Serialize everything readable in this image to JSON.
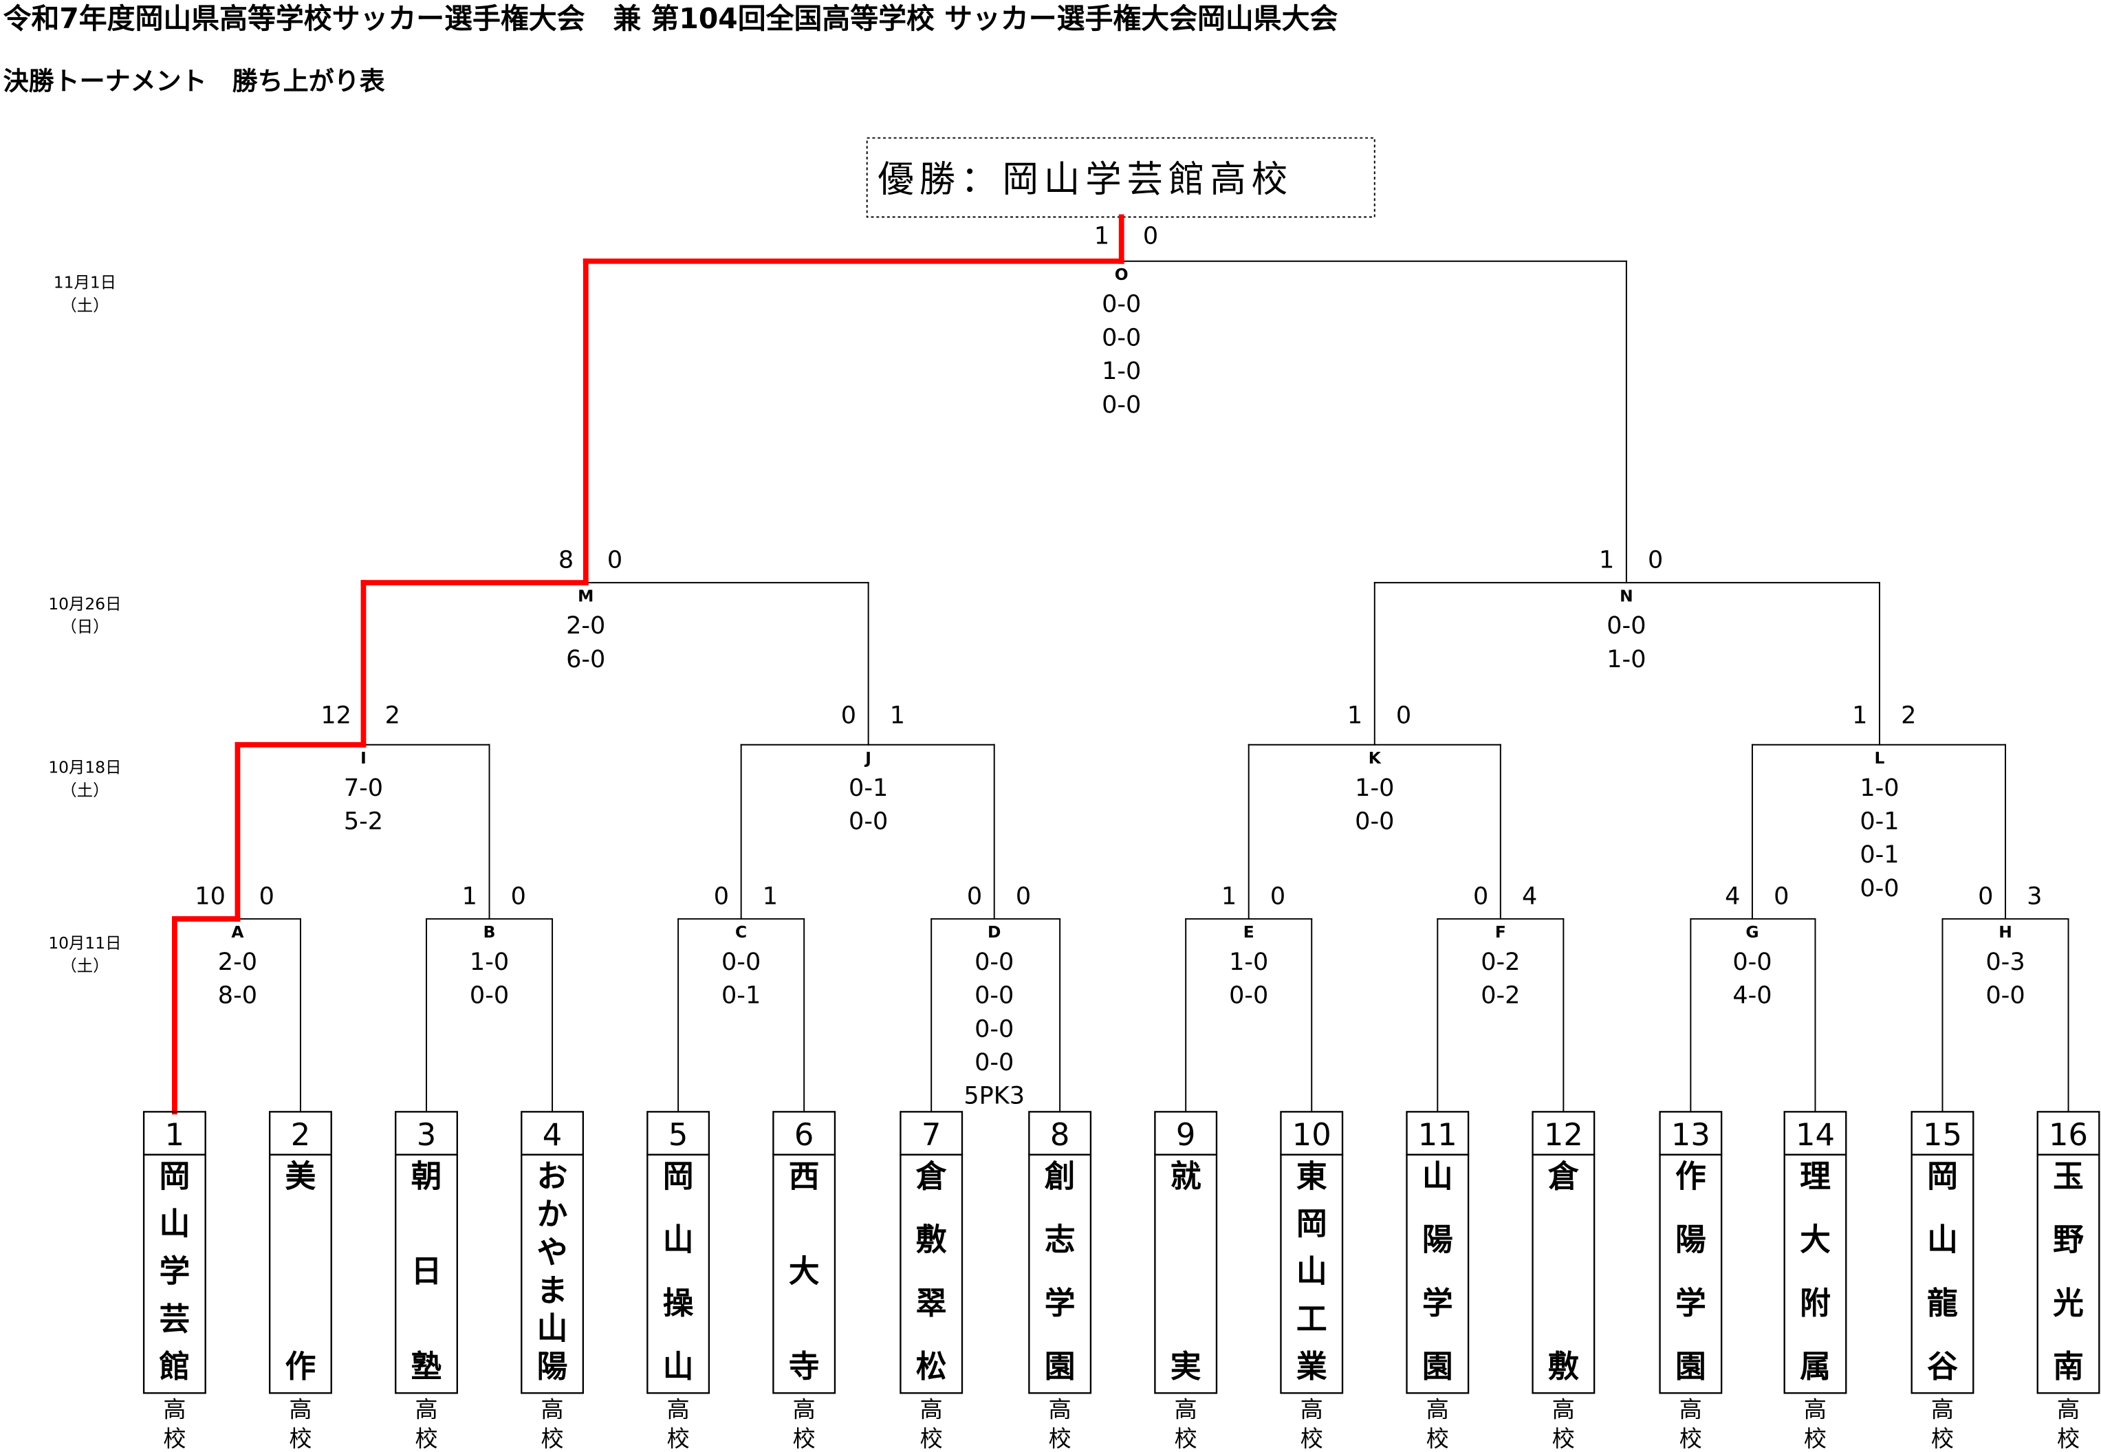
{
  "header": {
    "title": "令和7年度岡山県高等学校サッカー選手権大会　兼 第104回全国高等学校 サッカー選手権大会岡山県大会",
    "subtitle": "決勝トーナメント　勝ち上がり表"
  },
  "champion": "優勝：岡山学芸館高校",
  "colors": {
    "winner_line": "#ff0000",
    "line": "#000000"
  },
  "dates": [
    {
      "date": "11月1日",
      "day": "（土）"
    },
    {
      "date": "10月26日",
      "day": "（日）"
    },
    {
      "date": "10月18日",
      "day": "（土）"
    },
    {
      "date": "10月11日",
      "day": "（土）"
    }
  ],
  "school_suffix": [
    "高",
    "校"
  ],
  "teams": [
    {
      "no": "1",
      "name": "岡山学芸館"
    },
    {
      "no": "2",
      "name": "美作"
    },
    {
      "no": "3",
      "name": "朝日塾"
    },
    {
      "no": "4",
      "name": "おかやま山陽"
    },
    {
      "no": "5",
      "name": "岡山操山"
    },
    {
      "no": "6",
      "name": "西大寺"
    },
    {
      "no": "7",
      "name": "倉敷翠松"
    },
    {
      "no": "8",
      "name": "創志学園"
    },
    {
      "no": "9",
      "name": "就実"
    },
    {
      "no": "10",
      "name": "東岡山工業"
    },
    {
      "no": "11",
      "name": "山陽学園"
    },
    {
      "no": "12",
      "name": "倉敷"
    },
    {
      "no": "13",
      "name": "作陽学園"
    },
    {
      "no": "14",
      "name": "理大附属"
    },
    {
      "no": "15",
      "name": "岡山龍谷"
    },
    {
      "no": "16",
      "name": "玉野光南"
    }
  ],
  "matches": [
    {
      "id": "A",
      "total": [
        "10",
        "0"
      ],
      "halves": [
        "2-0",
        "8-0"
      ],
      "winner": "left"
    },
    {
      "id": "B",
      "total": [
        "1",
        "0"
      ],
      "halves": [
        "1-0",
        "0-0"
      ],
      "winner": "left"
    },
    {
      "id": "C",
      "total": [
        "0",
        "1"
      ],
      "halves": [
        "0-0",
        "0-1"
      ],
      "winner": "right"
    },
    {
      "id": "D",
      "total": [
        "0",
        "0"
      ],
      "halves": [
        "0-0",
        "0-0",
        "0-0",
        "0-0",
        "5PK3"
      ],
      "winner": "left"
    },
    {
      "id": "E",
      "total": [
        "1",
        "0"
      ],
      "halves": [
        "1-0",
        "0-0"
      ],
      "winner": "left"
    },
    {
      "id": "F",
      "total": [
        "0",
        "4"
      ],
      "halves": [
        "0-2",
        "0-2"
      ],
      "winner": "right"
    },
    {
      "id": "G",
      "total": [
        "4",
        "0"
      ],
      "halves": [
        "0-0",
        "4-0"
      ],
      "winner": "left"
    },
    {
      "id": "H",
      "total": [
        "0",
        "3"
      ],
      "halves": [
        "0-3",
        "0-0"
      ],
      "winner": "right"
    },
    {
      "id": "I",
      "total": [
        "12",
        "2"
      ],
      "halves": [
        "7-0",
        "5-2"
      ],
      "winner": "left"
    },
    {
      "id": "J",
      "total": [
        "0",
        "1"
      ],
      "halves": [
        "0-1",
        "0-0"
      ],
      "winner": "right"
    },
    {
      "id": "K",
      "total": [
        "1",
        "0"
      ],
      "halves": [
        "1-0",
        "0-0"
      ],
      "winner": "left"
    },
    {
      "id": "L",
      "total": [
        "1",
        "2"
      ],
      "halves": [
        "1-0",
        "0-1",
        "0-1",
        "0-0"
      ],
      "winner": "right"
    },
    {
      "id": "M",
      "total": [
        "8",
        "0"
      ],
      "halves": [
        "2-0",
        "6-0"
      ],
      "winner": "left"
    },
    {
      "id": "N",
      "total": [
        "1",
        "0"
      ],
      "halves": [
        "0-0",
        "1-0"
      ],
      "winner": "left"
    },
    {
      "id": "O",
      "total": [
        "1",
        "0"
      ],
      "halves": [
        "0-0",
        "0-0",
        "1-0",
        "0-0"
      ],
      "winner": "left"
    }
  ]
}
